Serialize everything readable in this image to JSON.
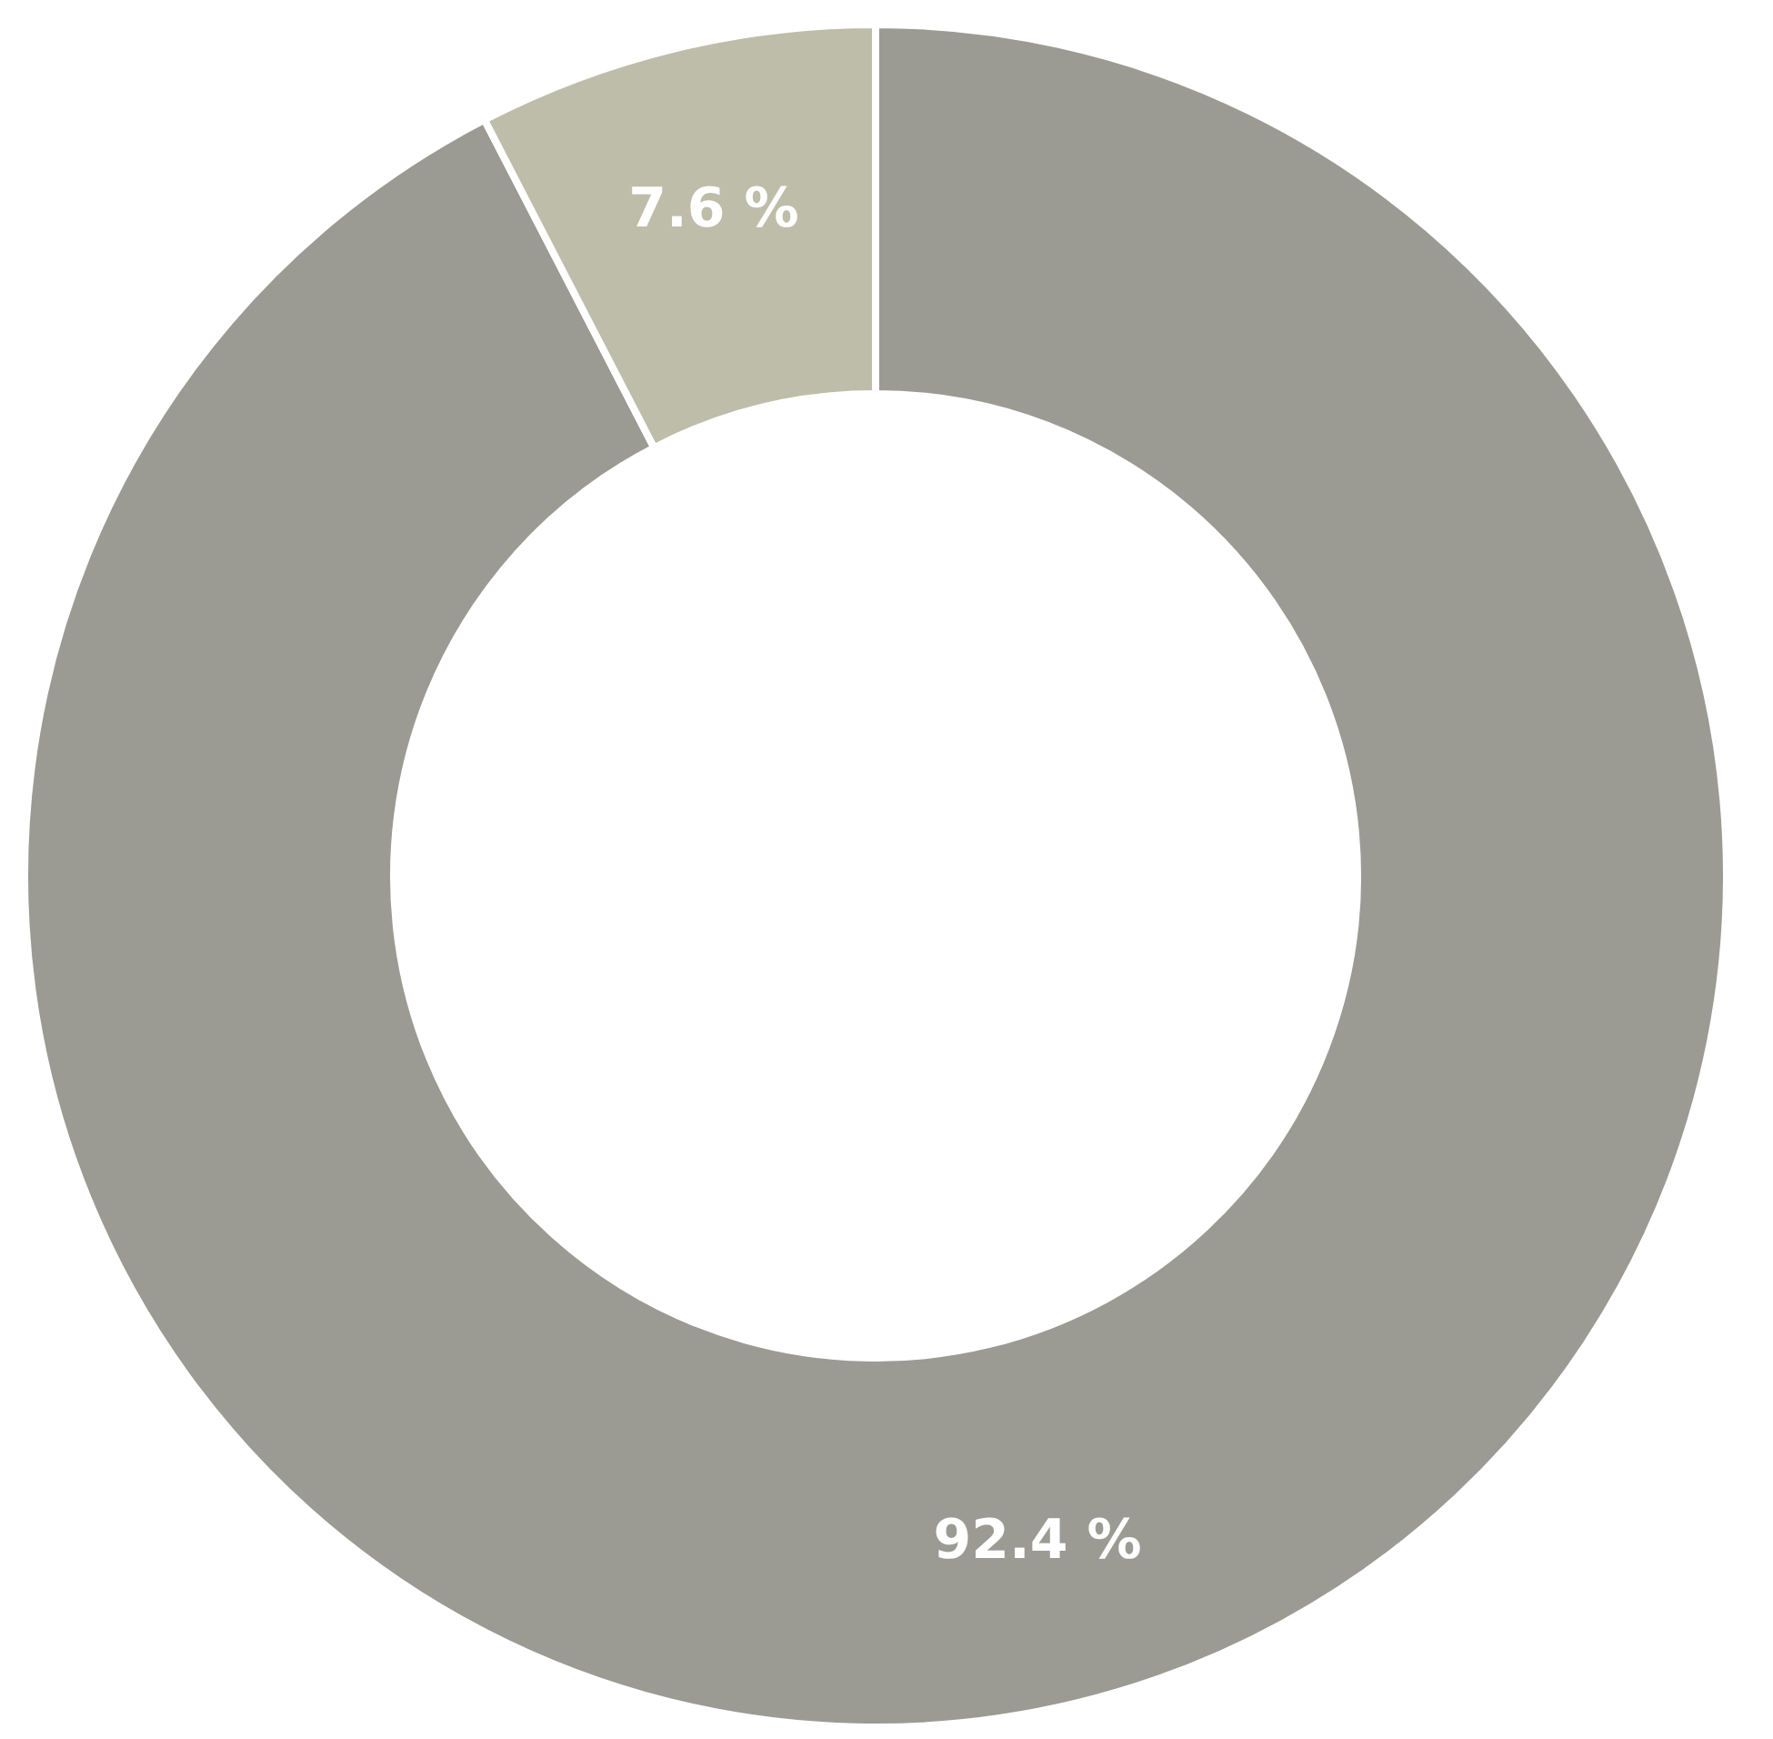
{
  "chart_data": {
    "type": "donut",
    "categories": [
      null,
      null
    ],
    "values": [
      92.4,
      7.6
    ],
    "colors": [
      "#9b9b94",
      "#bdbdaa"
    ],
    "value_labels": [
      "92.4 %",
      "7.6 %"
    ],
    "legend": false
  }
}
